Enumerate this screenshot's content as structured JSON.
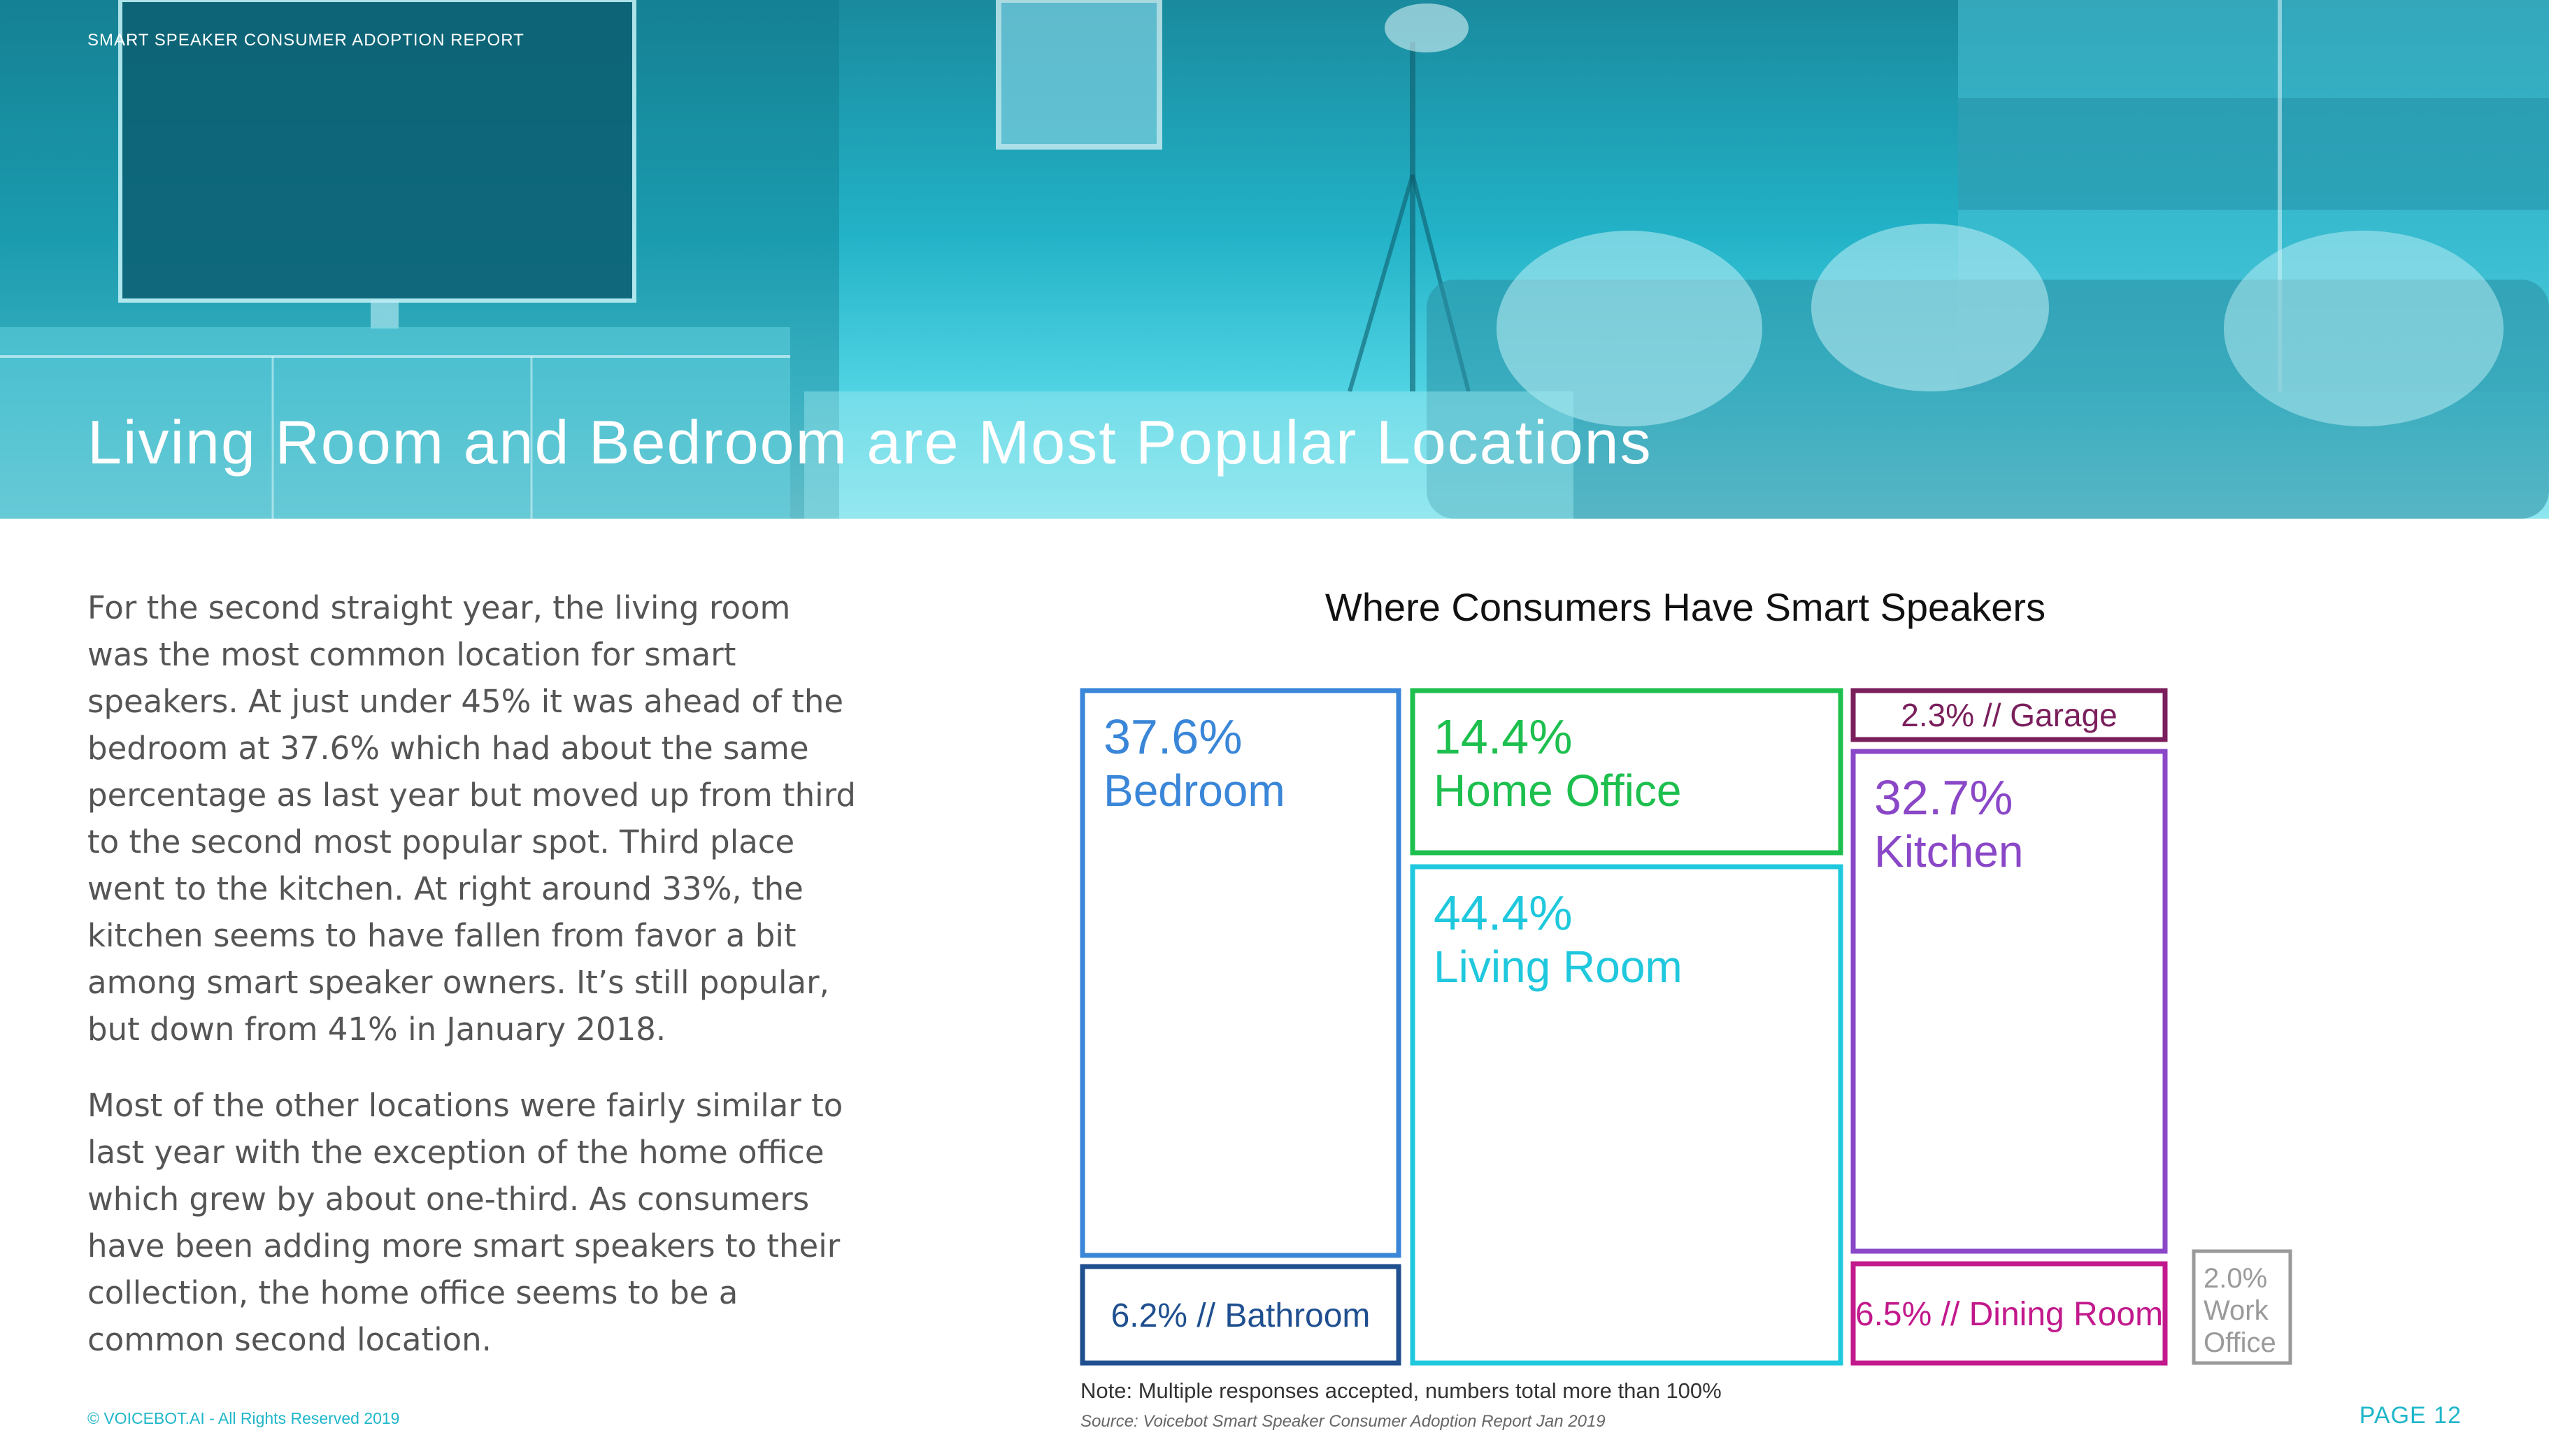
{
  "header": {
    "report_title": "SMART SPEAKER CONSUMER ADOPTION REPORT",
    "page_title": "Living Room and Bedroom are Most Popular Locations"
  },
  "body": {
    "paragraphs": [
      "For the second straight year, the living room was the most common location for smart speakers. At just under 45% it was ahead of the bedroom at 37.6% which had about the same percentage as last year but moved up from third to the second most popular spot. Third place went to the kitchen. At right around 33%, the kitchen seems to have fallen from favor a bit among smart speaker owners. It’s still popular, but down from 41% in January 2018.",
      "Most of the other locations were fairly similar to last year with the exception of the home office which grew by about one-third. As consumers have been adding more smart speakers to their collection, the home office seems to be a common second location."
    ]
  },
  "chart_data": {
    "type": "treemap",
    "title": "Where Consumers Have Smart Speakers",
    "items": [
      {
        "label": "Bedroom",
        "value": 37.6,
        "value_text": "37.6%",
        "color": "#3a86d8",
        "style": "stacked"
      },
      {
        "label": "Bathroom",
        "value": 6.2,
        "value_text": "6.2% // Bathroom",
        "color": "#1f4f8f",
        "style": "inline"
      },
      {
        "label": "Home Office",
        "value": 14.4,
        "value_text": "14.4%",
        "color": "#1dbf4e",
        "style": "stacked"
      },
      {
        "label": "Living Room",
        "value": 44.4,
        "value_text": "44.4%",
        "color": "#1fc8dd",
        "style": "stacked"
      },
      {
        "label": "Garage",
        "value": 2.3,
        "value_text": "2.3% // Garage",
        "color": "#7a1f5c",
        "style": "inline"
      },
      {
        "label": "Kitchen",
        "value": 32.7,
        "value_text": "32.7%",
        "color": "#8a47c7",
        "style": "stacked"
      },
      {
        "label": "Dining Room",
        "value": 6.5,
        "value_text": "6.5% // Dining Room",
        "color": "#c2198c",
        "style": "inline"
      },
      {
        "label": "Work Office",
        "value": 2.0,
        "value_text": "2.0%",
        "label_lines": [
          "Work",
          "Office"
        ],
        "color": "#9a9a9a",
        "style": "small"
      }
    ],
    "note": "Note: Multiple responses accepted, numbers total more than 100%",
    "source": "Source: Voicebot Smart Speaker Consumer Adoption Report Jan 2019"
  },
  "footer": {
    "copyright": "© VOICEBOT.AI - All Rights Reserved 2019",
    "page": "PAGE 12"
  }
}
